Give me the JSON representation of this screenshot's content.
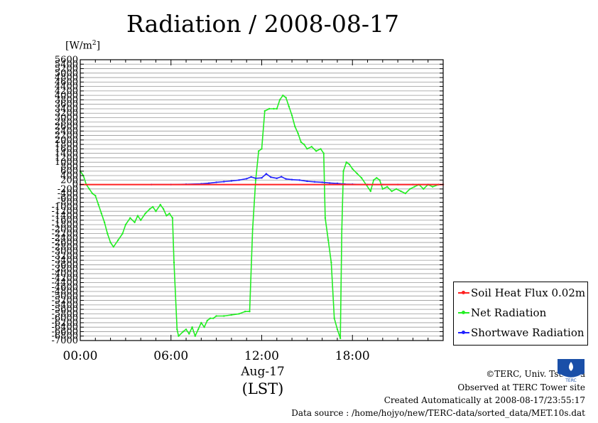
{
  "title": "Radiation / 2008-08-17",
  "unit_label": "[W/m",
  "unit_sup": "2",
  "unit_close": "]",
  "x_date": "Aug-17",
  "x_tz": "(LST)",
  "credits": [
    "©TERC, Univ. Tsukuba",
    "Observed at TERC Tower site",
    "Created Automatically at 2008-08-17/23:55:17",
    "Data source : /home/hojyo/new/TERC-data/sorted_data/MET.10s.dat"
  ],
  "logo_text": "TERC",
  "chart_data": {
    "type": "line",
    "title": "Radiation / 2008-08-17",
    "ylabel": "[W/m2]",
    "xlabel": "Aug-17 (LST)",
    "ylim": [
      -7000,
      5600
    ],
    "xlim": [
      0,
      24
    ],
    "grid": true,
    "legend_position": "bottom-right",
    "ytick_values": [
      5600,
      5400,
      5200,
      5000,
      4800,
      4600,
      4400,
      4200,
      4000,
      3800,
      3600,
      3400,
      3200,
      3000,
      2800,
      2600,
      2400,
      2200,
      2000,
      1800,
      1600,
      1400,
      1200,
      1000,
      800,
      600,
      400,
      200,
      0,
      -200,
      -400,
      -600,
      -800,
      -1000,
      -1200,
      -1400,
      -1600,
      -1800,
      -2000,
      -2200,
      -2400,
      -2600,
      -2800,
      -3000,
      -3200,
      -3400,
      -3600,
      -3800,
      -4000,
      -4200,
      -4400,
      -4600,
      -4800,
      -5000,
      -5200,
      -5400,
      -5600,
      -5800,
      -6000,
      -6200,
      -6400,
      -6600,
      -6800,
      -7000
    ],
    "xticks": [
      {
        "value": 0,
        "label": "00:00"
      },
      {
        "value": 6,
        "label": "06:00"
      },
      {
        "value": 12,
        "label": "12:00"
      },
      {
        "value": 18,
        "label": "18:00"
      }
    ],
    "series": [
      {
        "name": "Soil Heat Flux 0.02m",
        "color": "#ff2020",
        "x": [
          0,
          24
        ],
        "y": [
          0,
          0
        ]
      },
      {
        "name": "Net Radiation",
        "color": "#22ee22",
        "x": [
          0,
          0.2,
          0.4,
          0.6,
          0.8,
          1.0,
          1.2,
          1.4,
          1.6,
          1.8,
          2.0,
          2.2,
          2.5,
          2.8,
          3.0,
          3.3,
          3.6,
          3.8,
          4.0,
          4.3,
          4.6,
          4.8,
          5.0,
          5.3,
          5.5,
          5.7,
          5.9,
          6.1,
          6.2,
          6.4,
          6.5,
          6.8,
          7.0,
          7.2,
          7.4,
          7.6,
          7.8,
          8.0,
          8.2,
          8.4,
          8.6,
          8.8,
          9.0,
          9.5,
          10.0,
          10.5,
          10.9,
          11.2,
          11.4,
          11.6,
          11.8,
          12.0,
          12.2,
          12.5,
          12.8,
          13.0,
          13.2,
          13.4,
          13.6,
          13.8,
          14.0,
          14.2,
          14.4,
          14.6,
          14.8,
          15.0,
          15.3,
          15.6,
          15.9,
          16.1,
          16.2,
          16.4,
          16.6,
          16.8,
          17.0,
          17.2,
          17.3,
          17.4,
          17.6,
          17.8,
          18.0,
          18.3,
          18.6,
          18.9,
          19.2,
          19.4,
          19.6,
          19.8,
          20.0,
          20.3,
          20.6,
          20.9,
          21.2,
          21.5,
          21.8,
          22.1,
          22.4,
          22.7,
          23.0,
          23.3,
          23.7
        ],
        "y": [
          600,
          400,
          0,
          -200,
          -400,
          -500,
          -900,
          -1300,
          -1700,
          -2200,
          -2600,
          -2800,
          -2500,
          -2200,
          -1800,
          -1500,
          -1700,
          -1400,
          -1600,
          -1300,
          -1100,
          -1000,
          -1200,
          -900,
          -1100,
          -1400,
          -1300,
          -1500,
          -3500,
          -6500,
          -6800,
          -6600,
          -6500,
          -6700,
          -6400,
          -6800,
          -6500,
          -6200,
          -6400,
          -6100,
          -6000,
          -6000,
          -5900,
          -5900,
          -5850,
          -5800,
          -5700,
          -5700,
          -2000,
          200,
          1500,
          1600,
          3300,
          3400,
          3400,
          3400,
          3800,
          4000,
          3900,
          3500,
          3100,
          2600,
          2300,
          1900,
          1800,
          1600,
          1700,
          1500,
          1600,
          1400,
          -1500,
          -2500,
          -3500,
          -6000,
          -6500,
          -6900,
          -2000,
          600,
          1000,
          900,
          700,
          500,
          300,
          0,
          -300,
          200,
          300,
          200,
          -200,
          -100,
          -300,
          -200,
          -300,
          -400,
          -200,
          -100,
          0,
          -200,
          0,
          -100,
          0
        ]
      },
      {
        "name": "Shortwave Radiation",
        "color": "#2020ff",
        "x": [
          4.7,
          6.0,
          7.0,
          8.0,
          8.5,
          9.0,
          9.5,
          10.0,
          10.5,
          11.0,
          11.3,
          11.6,
          12.0,
          12.3,
          12.6,
          13.0,
          13.3,
          13.6,
          14.0,
          14.5,
          15.0,
          15.5,
          16.0,
          16.5,
          17.0,
          17.5,
          18.0,
          19.0,
          20.0,
          21.0,
          22.0,
          23.0,
          23.7
        ],
        "y": [
          0,
          0,
          10,
          30,
          60,
          100,
          130,
          160,
          200,
          260,
          340,
          280,
          300,
          480,
          330,
          280,
          350,
          250,
          220,
          200,
          150,
          120,
          100,
          70,
          50,
          20,
          10,
          0,
          0,
          0,
          0,
          0,
          0
        ]
      }
    ]
  }
}
